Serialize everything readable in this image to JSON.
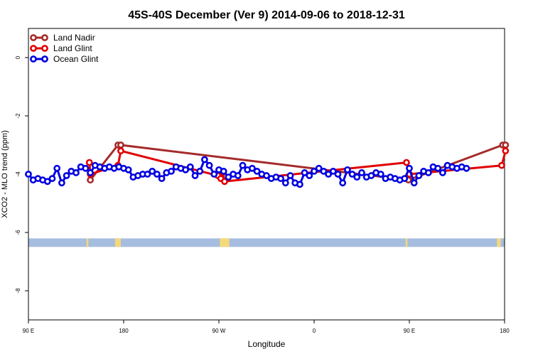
{
  "chart_data": {
    "type": "line",
    "title": "45S-40S December (Ver 9)   2014-09-06 to 2018-12-31",
    "xlabel": "Longitude",
    "ylabel": "XCO2 - MLO trend (ppm)",
    "xlim": [
      90,
      590
    ],
    "ylim": [
      -9,
      1
    ],
    "x_ticks": [
      {
        "value": 90,
        "label": "90 E"
      },
      {
        "value": 190,
        "label": "180"
      },
      {
        "value": 290,
        "label": "90 W"
      },
      {
        "value": 390,
        "label": "0"
      },
      {
        "value": 490,
        "label": "90 E"
      },
      {
        "value": 590,
        "label": "180"
      }
    ],
    "y_ticks": [
      {
        "value": 0,
        "label": "0"
      },
      {
        "value": -2,
        "label": "-2"
      },
      {
        "value": -4,
        "label": "-4"
      },
      {
        "value": -6,
        "label": "-6"
      },
      {
        "value": -8,
        "label": "-8"
      }
    ],
    "legend_position": "top-left",
    "series": [
      {
        "name": "Land Nadir",
        "color": "#a52a2a",
        "points": [
          [
            155,
            -4.2
          ],
          [
            184,
            -3.0
          ],
          [
            187,
            -3.0
          ],
          [
            489,
            -4.2
          ],
          [
            588,
            -3.0
          ],
          [
            591,
            -3.0
          ]
        ]
      },
      {
        "name": "Land Glint",
        "color": "#e00000",
        "points": [
          [
            154,
            -3.6
          ],
          [
            155,
            -4.0
          ],
          [
            184,
            -3.7
          ],
          [
            187,
            -3.2
          ],
          [
            289,
            -4.05
          ],
          [
            292,
            -4.15
          ],
          [
            294,
            -3.95
          ],
          [
            296,
            -4.25
          ],
          [
            487,
            -3.6
          ],
          [
            490,
            -4.0
          ],
          [
            587,
            -3.7
          ],
          [
            591,
            -3.2
          ]
        ]
      },
      {
        "name": "Ocean Glint",
        "color": "#0000e0",
        "points": [
          [
            90,
            -4.0
          ],
          [
            95,
            -4.2
          ],
          [
            100,
            -4.15
          ],
          [
            105,
            -4.2
          ],
          [
            110,
            -4.25
          ],
          [
            115,
            -4.15
          ],
          [
            120,
            -3.8
          ],
          [
            125,
            -4.3
          ],
          [
            130,
            -4.05
          ],
          [
            135,
            -3.9
          ],
          [
            140,
            -3.95
          ],
          [
            145,
            -3.75
          ],
          [
            150,
            -3.8
          ],
          [
            155,
            -3.95
          ],
          [
            160,
            -3.7
          ],
          [
            165,
            -3.75
          ],
          [
            170,
            -3.8
          ],
          [
            175,
            -3.75
          ],
          [
            180,
            -3.8
          ],
          [
            185,
            -3.75
          ],
          [
            190,
            -3.8
          ],
          [
            195,
            -3.85
          ],
          [
            200,
            -4.1
          ],
          [
            205,
            -4.05
          ],
          [
            210,
            -4.0
          ],
          [
            215,
            -4.0
          ],
          [
            220,
            -3.9
          ],
          [
            225,
            -4.0
          ],
          [
            230,
            -4.15
          ],
          [
            235,
            -3.95
          ],
          [
            240,
            -3.9
          ],
          [
            245,
            -3.75
          ],
          [
            250,
            -3.8
          ],
          [
            255,
            -3.85
          ],
          [
            260,
            -3.75
          ],
          [
            265,
            -4.05
          ],
          [
            270,
            -3.9
          ],
          [
            275,
            -3.5
          ],
          [
            280,
            -3.7
          ],
          [
            285,
            -4.0
          ],
          [
            290,
            -3.85
          ],
          [
            295,
            -3.9
          ],
          [
            300,
            -4.1
          ],
          [
            305,
            -4.0
          ],
          [
            310,
            -4.05
          ],
          [
            315,
            -3.7
          ],
          [
            320,
            -3.85
          ],
          [
            325,
            -3.8
          ],
          [
            330,
            -3.9
          ],
          [
            335,
            -4.0
          ],
          [
            340,
            -4.05
          ],
          [
            345,
            -4.15
          ],
          [
            350,
            -4.1
          ],
          [
            355,
            -4.15
          ],
          [
            360,
            -4.3
          ],
          [
            365,
            -4.05
          ],
          [
            370,
            -4.3
          ],
          [
            375,
            -4.35
          ],
          [
            380,
            -3.95
          ],
          [
            385,
            -4.05
          ],
          [
            390,
            -3.9
          ],
          [
            395,
            -3.8
          ],
          [
            400,
            -3.9
          ],
          [
            405,
            -4.0
          ],
          [
            410,
            -3.9
          ],
          [
            415,
            -4.0
          ],
          [
            420,
            -4.3
          ],
          [
            425,
            -3.85
          ],
          [
            430,
            -4.0
          ],
          [
            435,
            -4.1
          ],
          [
            440,
            -3.95
          ],
          [
            445,
            -4.1
          ],
          [
            450,
            -4.05
          ],
          [
            455,
            -3.95
          ],
          [
            460,
            -4.0
          ],
          [
            465,
            -4.15
          ],
          [
            470,
            -4.1
          ],
          [
            475,
            -4.15
          ],
          [
            480,
            -4.2
          ],
          [
            485,
            -4.15
          ],
          [
            490,
            -3.8
          ],
          [
            495,
            -4.3
          ],
          [
            500,
            -4.05
          ],
          [
            505,
            -3.9
          ],
          [
            510,
            -3.95
          ],
          [
            515,
            -3.75
          ],
          [
            520,
            -3.8
          ],
          [
            525,
            -3.95
          ],
          [
            530,
            -3.7
          ],
          [
            535,
            -3.75
          ],
          [
            540,
            -3.8
          ],
          [
            545,
            -3.75
          ],
          [
            550,
            -3.8
          ]
        ]
      }
    ],
    "land_mask": {
      "y": -6.35,
      "band_color": "#a6bde0",
      "land_color": "#f5d87a",
      "land_spans": [
        [
          151,
          153
        ],
        [
          181,
          187
        ],
        [
          291,
          301
        ],
        [
          486,
          488
        ],
        [
          582,
          586
        ]
      ]
    }
  }
}
